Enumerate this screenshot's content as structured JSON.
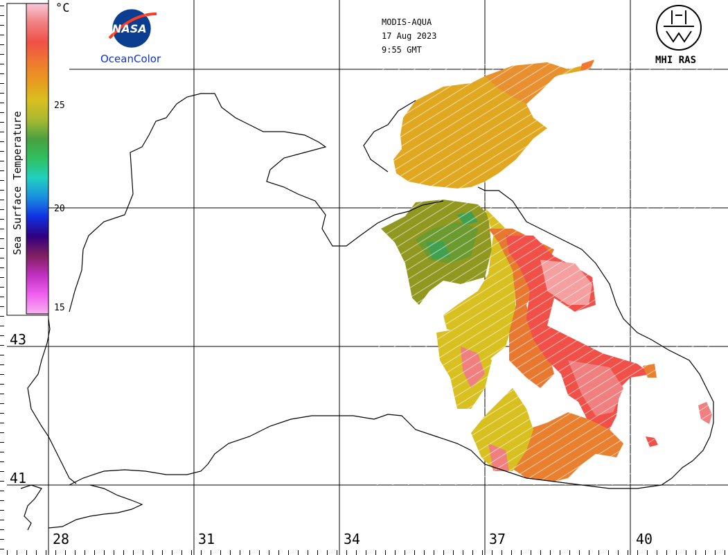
{
  "header": {
    "sensor": "MODIS-AQUA",
    "date": "17 Aug 2023",
    "time": "9:55 GMT"
  },
  "logos": {
    "nasa_text": "NASA",
    "oceancolor": "OceanColor",
    "mhi": "MHI RAS"
  },
  "legend": {
    "title": "Sea Surface Temperature",
    "unit": "°C",
    "ticks": [
      "25",
      "20",
      "15"
    ],
    "colors": [
      "#f8c8d8",
      "#f08080",
      "#f05048",
      "#f07830",
      "#e89a20",
      "#d8c020",
      "#a8b830",
      "#48a040",
      "#30c060",
      "#20d0c0",
      "#1a8ee0",
      "#1030e0",
      "#300080",
      "#802060",
      "#c030c0",
      "#f060f0",
      "#f8b0f0"
    ]
  },
  "axes": {
    "lon_labels": [
      "28",
      "31",
      "34",
      "37",
      "40"
    ],
    "lat_labels": [
      "43",
      "41"
    ]
  },
  "palette": {
    "warm_pink": "#f08080",
    "orange": "#e87830",
    "yellow": "#d8c020",
    "olive": "#909820",
    "green": "#48a040"
  }
}
